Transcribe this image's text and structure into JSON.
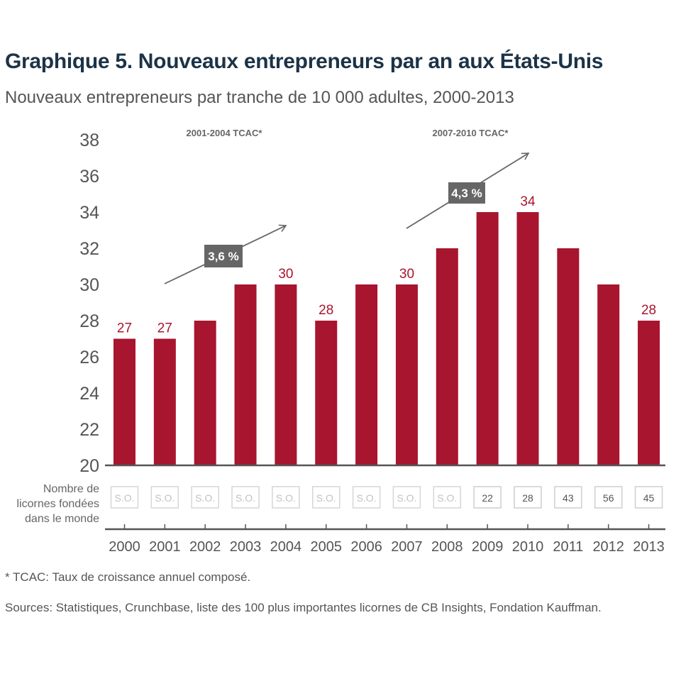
{
  "title": "Graphique 5. Nouveaux entrepreneurs par an aux États-Unis",
  "subtitle": "Nouveaux entrepreneurs par tranche de 10 000 adultes, 2000-2013",
  "unicorn_row_label": [
    "Nombre de",
    "licornes fondées",
    "dans le monde"
  ],
  "footnote": "* TCAC: Taux de croissance annuel composé.",
  "sources": "Sources: Statistiques, Crunchbase, liste des 100 plus importantes licornes de CB Insights, Fondation Kauffman.",
  "colors": {
    "bar": "#a8152e",
    "value_label": "#a8152e",
    "title": "#1c3347",
    "annotation_box": "#666666"
  },
  "chart_data": {
    "type": "bar",
    "title": "Graphique 5. Nouveaux entrepreneurs par an aux États-Unis",
    "subtitle": "Nouveaux entrepreneurs par tranche de 10 000 adultes, 2000-2013",
    "xlabel": "",
    "ylabel": "",
    "categories": [
      "2000",
      "2001",
      "2002",
      "2003",
      "2004",
      "2005",
      "2006",
      "2007",
      "2008",
      "2009",
      "2010",
      "2011",
      "2012",
      "2013"
    ],
    "values": [
      27,
      27,
      28,
      30,
      30,
      28,
      30,
      30,
      32,
      34,
      34,
      32,
      30,
      28
    ],
    "value_labels": [
      "27",
      "27",
      "",
      "",
      "30",
      "28",
      "",
      "30",
      "",
      "",
      "34",
      "",
      "",
      "28"
    ],
    "ylim": [
      20,
      38
    ],
    "yticks": [
      20,
      22,
      24,
      26,
      28,
      30,
      32,
      34,
      36,
      38
    ],
    "grid": false,
    "legend": "none",
    "unicorns": [
      "S.O.",
      "S.O.",
      "S.O.",
      "S.O.",
      "S.O.",
      "S.O.",
      "S.O.",
      "S.O.",
      "S.O.",
      "22",
      "28",
      "43",
      "56",
      "45"
    ],
    "annotations": [
      {
        "heading": "2001-2004 TCAC*",
        "label": "3,6 %",
        "from": "2001",
        "to": "2004"
      },
      {
        "heading": "2007-2010 TCAC*",
        "label": "4,3 %",
        "from": "2007",
        "to": "2010"
      }
    ]
  }
}
